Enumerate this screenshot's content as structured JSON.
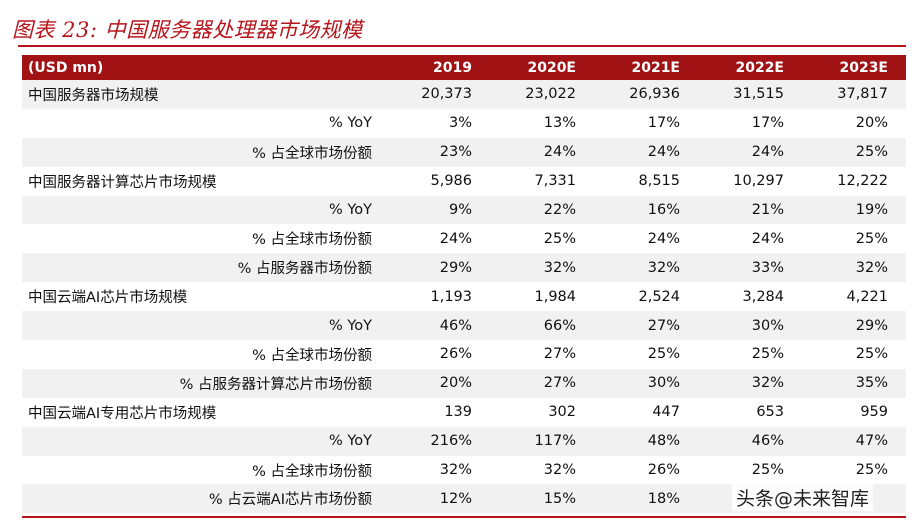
{
  "title": "图表 23:  中国服务器处理器市场规模",
  "header": [
    "(USD mn)",
    "2019",
    "2020E",
    "2021E",
    "2022E",
    "2023E"
  ],
  "rows": [
    {
      "label": "中国服务器市场规模",
      "values": [
        "20,373",
        "23,022",
        "26,936",
        "31,515",
        "37,817"
      ],
      "main": true
    },
    {
      "label": "% YoY",
      "values": [
        "3%",
        "13%",
        "17%",
        "17%",
        "20%"
      ],
      "main": false
    },
    {
      "label": "% 占全球市场份额",
      "values": [
        "23%",
        "24%",
        "24%",
        "24%",
        "25%"
      ],
      "main": false
    },
    {
      "label": "中国服务器计算芯片市场规模",
      "values": [
        "5,986",
        "7,331",
        "8,515",
        "10,297",
        "12,222"
      ],
      "main": true
    },
    {
      "label": "% YoY",
      "values": [
        "9%",
        "22%",
        "16%",
        "21%",
        "19%"
      ],
      "main": false
    },
    {
      "label": "% 占全球市场份额",
      "values": [
        "24%",
        "25%",
        "24%",
        "24%",
        "25%"
      ],
      "main": false
    },
    {
      "label": "% 占服务器市场份额",
      "values": [
        "29%",
        "32%",
        "32%",
        "33%",
        "32%"
      ],
      "main": false
    },
    {
      "label": "中国云端AI芯片市场规模",
      "values": [
        "1,193",
        "1,984",
        "2,524",
        "3,284",
        "4,221"
      ],
      "main": true
    },
    {
      "label": "% YoY",
      "values": [
        "46%",
        "66%",
        "27%",
        "30%",
        "29%"
      ],
      "main": false
    },
    {
      "label": "% 占全球市场份额",
      "values": [
        "26%",
        "27%",
        "25%",
        "25%",
        "25%"
      ],
      "main": false
    },
    {
      "label": "% 占服务器计算芯片市场份额",
      "values": [
        "20%",
        "27%",
        "30%",
        "32%",
        "35%"
      ],
      "main": false
    },
    {
      "label": "中国云端AI专用芯片市场规模",
      "values": [
        "139",
        "302",
        "447",
        "653",
        "959"
      ],
      "main": true
    },
    {
      "label": "% YoY",
      "values": [
        "216%",
        "117%",
        "48%",
        "46%",
        "47%"
      ],
      "main": false
    },
    {
      "label": "% 占全球市场份额",
      "values": [
        "32%",
        "32%",
        "26%",
        "25%",
        "25%"
      ],
      "main": false
    },
    {
      "label": "% 占云端AI芯片市场份额",
      "values": [
        "12%",
        "15%",
        "18%",
        "",
        ""
      ],
      "main": false
    }
  ],
  "watermark": "头条@未来智库"
}
